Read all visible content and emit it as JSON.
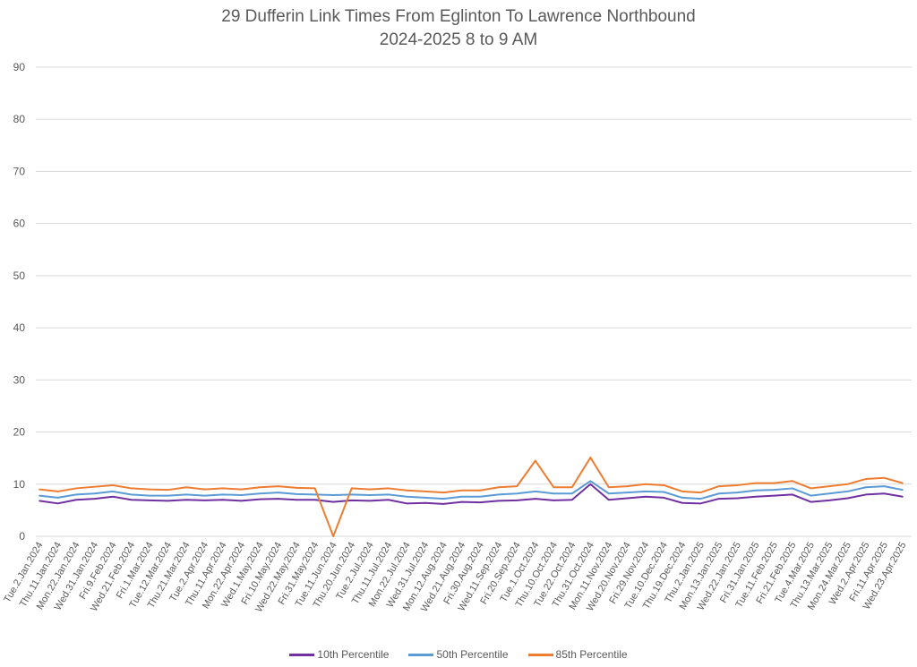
{
  "chart_data": {
    "type": "line",
    "title": "29 Dufferin Link Times From Eglinton To Lawrence Northbound",
    "subtitle": "2024-2025 8 to 9 AM",
    "xlabel": "",
    "ylabel": "",
    "ylim": [
      0,
      90
    ],
    "yticks": [
      0,
      10,
      20,
      30,
      40,
      50,
      60,
      70,
      80,
      90
    ],
    "grid": true,
    "legend": "bottom",
    "categories": [
      "Tue.2.Jan.2024",
      "Thu.11.Jan.2024",
      "Mon.22.Jan.2024",
      "Wed.31.Jan.2024",
      "Fri.9.Feb.2024",
      "Wed.21.Feb.2024",
      "Fri.1.Mar.2024",
      "Tue.12.Mar.2024",
      "Thu.21.Mar.2024",
      "Tue.2.Apr.2024",
      "Thu.11.Apr.2024",
      "Mon.22.Apr.2024",
      "Wed.1.May.2024",
      "Fri.10.May.2024",
      "Wed.22.May.2024",
      "Fri.31.May.2024",
      "Tue.11.Jun.2024",
      "Thu.20.Jun.2024",
      "Tue.2.Jul.2024",
      "Thu.11.Jul.2024",
      "Mon.22.Jul.2024",
      "Wed.31.Jul.2024",
      "Mon.12.Aug.2024",
      "Wed.21.Aug.2024",
      "Fri.30.Aug.2024",
      "Wed.11.Sep.2024",
      "Fri.20.Sep.2024",
      "Tue.1.Oct.2024",
      "Thu.10.Oct.2024",
      "Tue.22.Oct.2024",
      "Thu.31.Oct.2024",
      "Mon.11.Nov.2024",
      "Wed.20.Nov.2024",
      "Fri.29.Nov.2024",
      "Tue.10.Dec.2024",
      "Thu.19.Dec.2024",
      "Thu.2.Jan.2025",
      "Mon.13.Jan.2025",
      "Wed.22.Jan.2025",
      "Fri.31.Jan.2025",
      "Tue.11.Feb.2025",
      "Fri.21.Feb.2025",
      "Tue.4.Mar.2025",
      "Thu.13.Mar.2025",
      "Mon.24.Mar.2025",
      "Wed.2.Apr.2025",
      "Fri.11.Apr.2025",
      "Wed.23.Apr.2025"
    ],
    "series": [
      {
        "name": "10th Percentile",
        "color": "#7030A0",
        "values": [
          6.8,
          6.3,
          7.0,
          7.2,
          7.6,
          7.0,
          6.9,
          6.8,
          7.0,
          6.9,
          7.0,
          6.8,
          7.1,
          7.2,
          7.0,
          7.0,
          6.6,
          6.9,
          6.8,
          7.0,
          6.3,
          6.4,
          6.2,
          6.6,
          6.5,
          6.8,
          6.9,
          7.2,
          6.9,
          7.0,
          10.0,
          7.0,
          7.3,
          7.6,
          7.4,
          6.4,
          6.3,
          7.2,
          7.3,
          7.6,
          7.8,
          8.0,
          6.6,
          6.9,
          7.3,
          8.0,
          8.2,
          7.6
        ]
      },
      {
        "name": "50th Percentile",
        "color": "#5B9BD5",
        "values": [
          7.8,
          7.4,
          8.0,
          8.2,
          8.6,
          8.0,
          7.8,
          7.8,
          8.0,
          7.8,
          8.0,
          7.9,
          8.2,
          8.4,
          8.1,
          8.0,
          7.9,
          8.0,
          7.9,
          8.0,
          7.6,
          7.4,
          7.2,
          7.6,
          7.6,
          8.0,
          8.2,
          8.6,
          8.2,
          8.2,
          10.6,
          8.2,
          8.4,
          8.6,
          8.5,
          7.4,
          7.2,
          8.2,
          8.4,
          8.8,
          8.9,
          9.2,
          7.8,
          8.2,
          8.6,
          9.4,
          9.6,
          8.9
        ]
      },
      {
        "name": "85th Percentile",
        "color": "#ED7D31",
        "values": [
          9.0,
          8.6,
          9.2,
          9.5,
          9.8,
          9.2,
          9.0,
          8.9,
          9.4,
          9.0,
          9.2,
          9.0,
          9.4,
          9.6,
          9.3,
          9.2,
          0.0,
          9.2,
          9.0,
          9.2,
          8.8,
          8.6,
          8.4,
          8.8,
          8.8,
          9.4,
          9.6,
          14.5,
          9.4,
          9.4,
          15.1,
          9.4,
          9.6,
          10.0,
          9.8,
          8.6,
          8.4,
          9.6,
          9.8,
          10.2,
          10.2,
          10.6,
          9.2,
          9.6,
          10.0,
          11.0,
          11.2,
          10.2
        ]
      }
    ]
  }
}
